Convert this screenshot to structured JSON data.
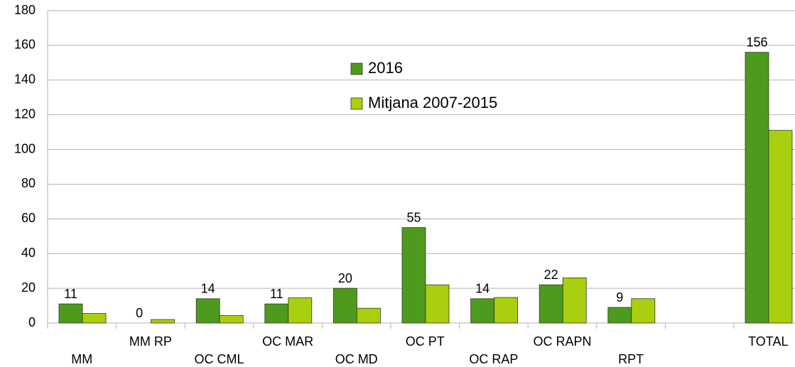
{
  "chart_data": {
    "type": "bar",
    "categories": [
      "MM",
      "MM RP",
      "OC CML",
      "OC MAR",
      "OC MD",
      "OC PT",
      "OC RAP",
      "OC RAPN",
      "RPT",
      null,
      "TOTAL"
    ],
    "series": [
      {
        "name": "2016",
        "color": "#4e9a1e",
        "values": [
          11,
          0,
          14,
          11,
          20,
          55,
          14,
          22,
          9,
          null,
          156
        ]
      },
      {
        "name": "Mitjana 2007-2015",
        "color": "#aacf0f",
        "values": [
          5.5,
          2,
          4.3,
          14.5,
          8.5,
          22,
          14.7,
          26,
          14,
          null,
          111
        ]
      }
    ],
    "ylim": [
      0,
      180
    ],
    "yticks": [
      0,
      20,
      40,
      60,
      80,
      100,
      120,
      140,
      160,
      180
    ],
    "grid": true
  }
}
